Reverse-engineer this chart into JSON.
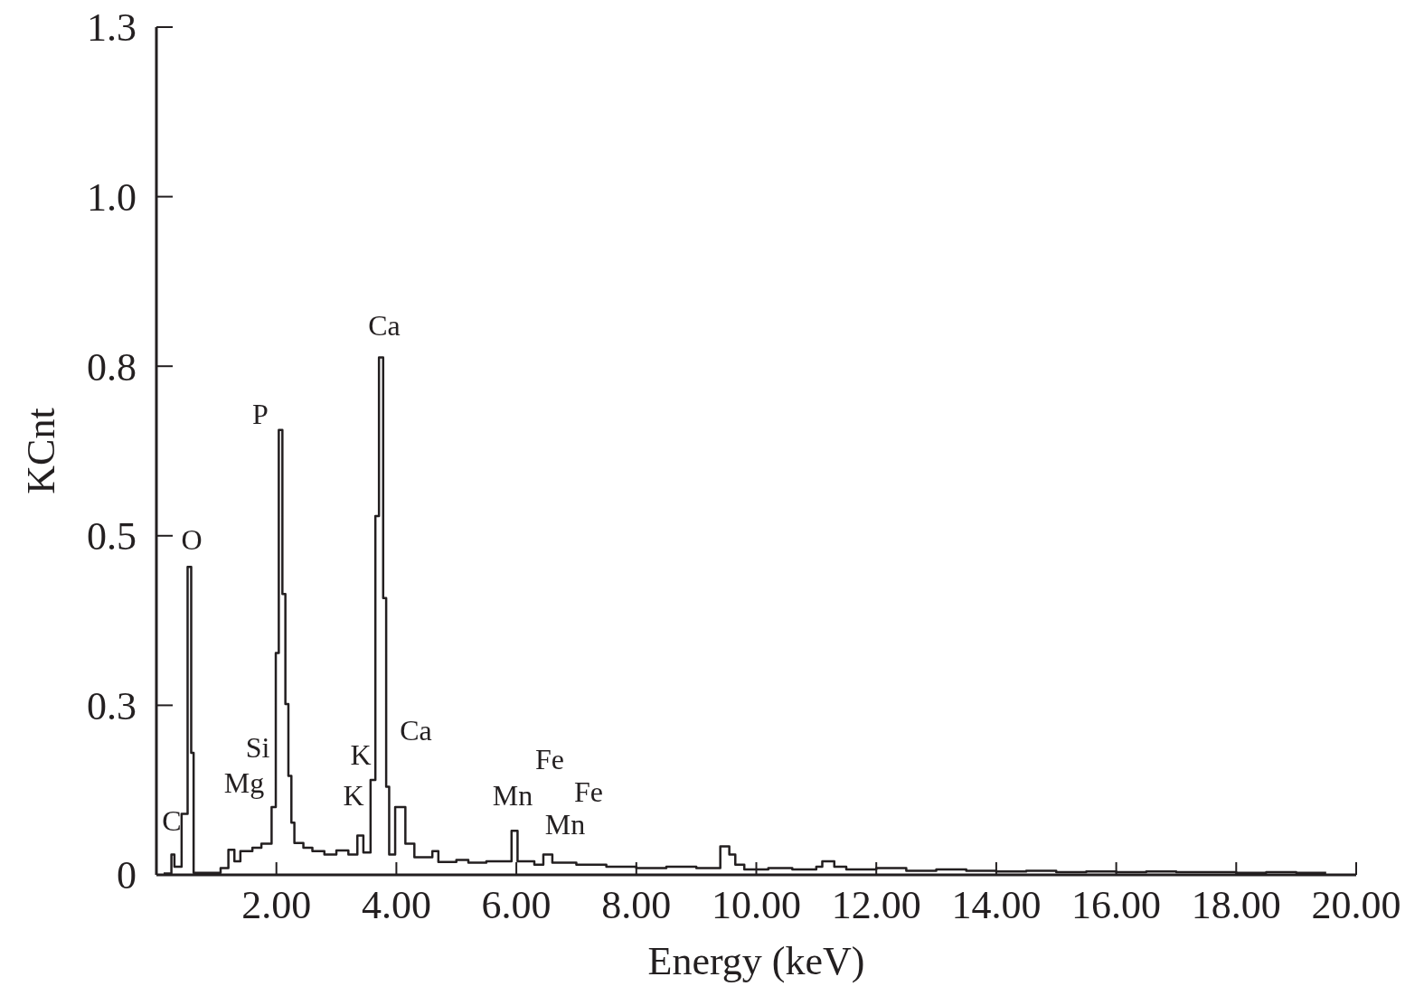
{
  "chart_data": {
    "type": "step",
    "xlabel": "Energy (keV)",
    "ylabel": "KCnt",
    "xlim": [
      0,
      20
    ],
    "ylim": [
      0,
      1.25
    ],
    "xticks": [
      {
        "value": 2,
        "label": "2.00"
      },
      {
        "value": 4,
        "label": "4.00"
      },
      {
        "value": 6,
        "label": "6.00"
      },
      {
        "value": 8,
        "label": "8.00"
      },
      {
        "value": 10,
        "label": "10.00"
      },
      {
        "value": 12,
        "label": "12.00"
      },
      {
        "value": 14,
        "label": "14.00"
      },
      {
        "value": 16,
        "label": "16.00"
      },
      {
        "value": 18,
        "label": "18.00"
      },
      {
        "value": 20,
        "label": "20.00"
      }
    ],
    "yticks": [
      0,
      {
        "value": 0.25,
        "label": "0.3"
      },
      0.5,
      {
        "value": 0.75,
        "label": "0.8"
      },
      {
        "value": 1,
        "label": "1.0"
      },
      {
        "value": 1.25,
        "label": "1.3"
      }
    ],
    "grid": false,
    "series": [
      {
        "color": "#231f20",
        "x": [
          0.12,
          0.25,
          0.3,
          0.42,
          0.52,
          0.58,
          0.62,
          1.07,
          1.2,
          1.3,
          1.4,
          1.6,
          1.75,
          1.92,
          1.99,
          2.04,
          2.1,
          2.15,
          2.2,
          2.25,
          2.3,
          2.45,
          2.6,
          2.8,
          3.0,
          3.2,
          3.35,
          3.45,
          3.57,
          3.65,
          3.71,
          3.78,
          3.83,
          3.88,
          3.98,
          4.15,
          4.3,
          4.6,
          4.7,
          5.0,
          5.2,
          5.5,
          5.92,
          6.02,
          6.3,
          6.45,
          6.6,
          7.0,
          7.5,
          8.0,
          8.5,
          9.0,
          9.4,
          9.55,
          9.65,
          9.8,
          10.2,
          10.6,
          11.0,
          11.1,
          11.3,
          11.5,
          12.0,
          12.5,
          13.0,
          13.5,
          14.0,
          14.5,
          15.0,
          15.5,
          16.0,
          16.5,
          17.0,
          17.5,
          18.0,
          18.5,
          19.0,
          19.5
        ],
        "values": [
          0.002,
          0.03,
          0.012,
          0.09,
          0.454,
          0.18,
          0.003,
          0.01,
          0.037,
          0.02,
          0.035,
          0.04,
          0.046,
          0.1,
          0.327,
          0.656,
          0.414,
          0.252,
          0.146,
          0.077,
          0.047,
          0.04,
          0.035,
          0.03,
          0.036,
          0.03,
          0.058,
          0.033,
          0.14,
          0.529,
          0.763,
          0.408,
          0.13,
          0.03,
          0.1,
          0.046,
          0.026,
          0.035,
          0.019,
          0.022,
          0.018,
          0.02,
          0.065,
          0.02,
          0.015,
          0.03,
          0.018,
          0.015,
          0.012,
          0.01,
          0.012,
          0.01,
          0.042,
          0.03,
          0.015,
          0.008,
          0.01,
          0.008,
          0.012,
          0.02,
          0.012,
          0.008,
          0.01,
          0.006,
          0.008,
          0.006,
          0.005,
          0.006,
          0.004,
          0.005,
          0.004,
          0.005,
          0.004,
          0.004,
          0.003,
          0.004,
          0.003,
          0.003
        ]
      }
    ],
    "annotations": [
      "C",
      "O",
      "Mg",
      "Si",
      "P",
      "K",
      "K",
      "Ca",
      "Ca",
      "Mn",
      "Fe",
      "Mn",
      "Fe"
    ]
  }
}
